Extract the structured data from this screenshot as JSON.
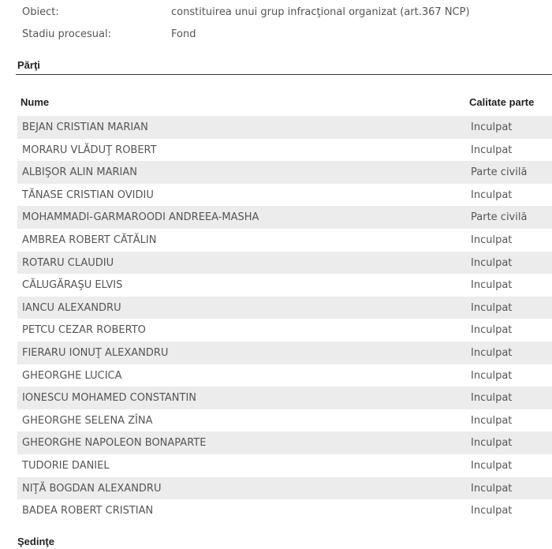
{
  "details": [
    {
      "label": "Obiect:",
      "value": "constituirea unui grup infracţional organizat (art.367 NCP)"
    },
    {
      "label": "Stadiu procesual:",
      "value": "Fond"
    }
  ],
  "parti": {
    "title": "Părţi",
    "columns": [
      "Nume",
      "Calitate parte"
    ],
    "rows": [
      [
        "BEJAN CRISTIAN MARIAN",
        "Inculpat"
      ],
      [
        "MORARU VLĂDUŢ ROBERT",
        "Inculpat"
      ],
      [
        "ALBIŞOR ALIN MARIAN",
        "Parte civilă"
      ],
      [
        "TĂNASE CRISTIAN OVIDIU",
        "Inculpat"
      ],
      [
        "MOHAMMADI-GARMAROODI ANDREEA-MASHA",
        "Parte civilă"
      ],
      [
        "AMBREA ROBERT CĂTĂLIN",
        "Inculpat"
      ],
      [
        "ROTARU CLAUDIU",
        "Inculpat"
      ],
      [
        "CĂLUGĂRAŞU ELVIS",
        "Inculpat"
      ],
      [
        "IANCU ALEXANDRU",
        "Inculpat"
      ],
      [
        "PETCU CEZAR ROBERTO",
        "Inculpat"
      ],
      [
        "FIERARU IONUŢ ALEXANDRU",
        "Inculpat"
      ],
      [
        "GHEORGHE LUCICA",
        "Inculpat"
      ],
      [
        "IONESCU MOHAMED CONSTANTIN",
        "Inculpat"
      ],
      [
        "GHEORGHE SELENA ZÎNA",
        "Inculpat"
      ],
      [
        "GHEORGHE NAPOLEON BONAPARTE",
        "Inculpat"
      ],
      [
        "TUDORIE DANIEL",
        "Inculpat"
      ],
      [
        "NIŢĂ BOGDAN ALEXANDRU",
        "Inculpat"
      ],
      [
        "BADEA ROBERT CRISTIAN",
        "Inculpat"
      ]
    ]
  },
  "sedinte": {
    "title": "Şedinţe"
  }
}
